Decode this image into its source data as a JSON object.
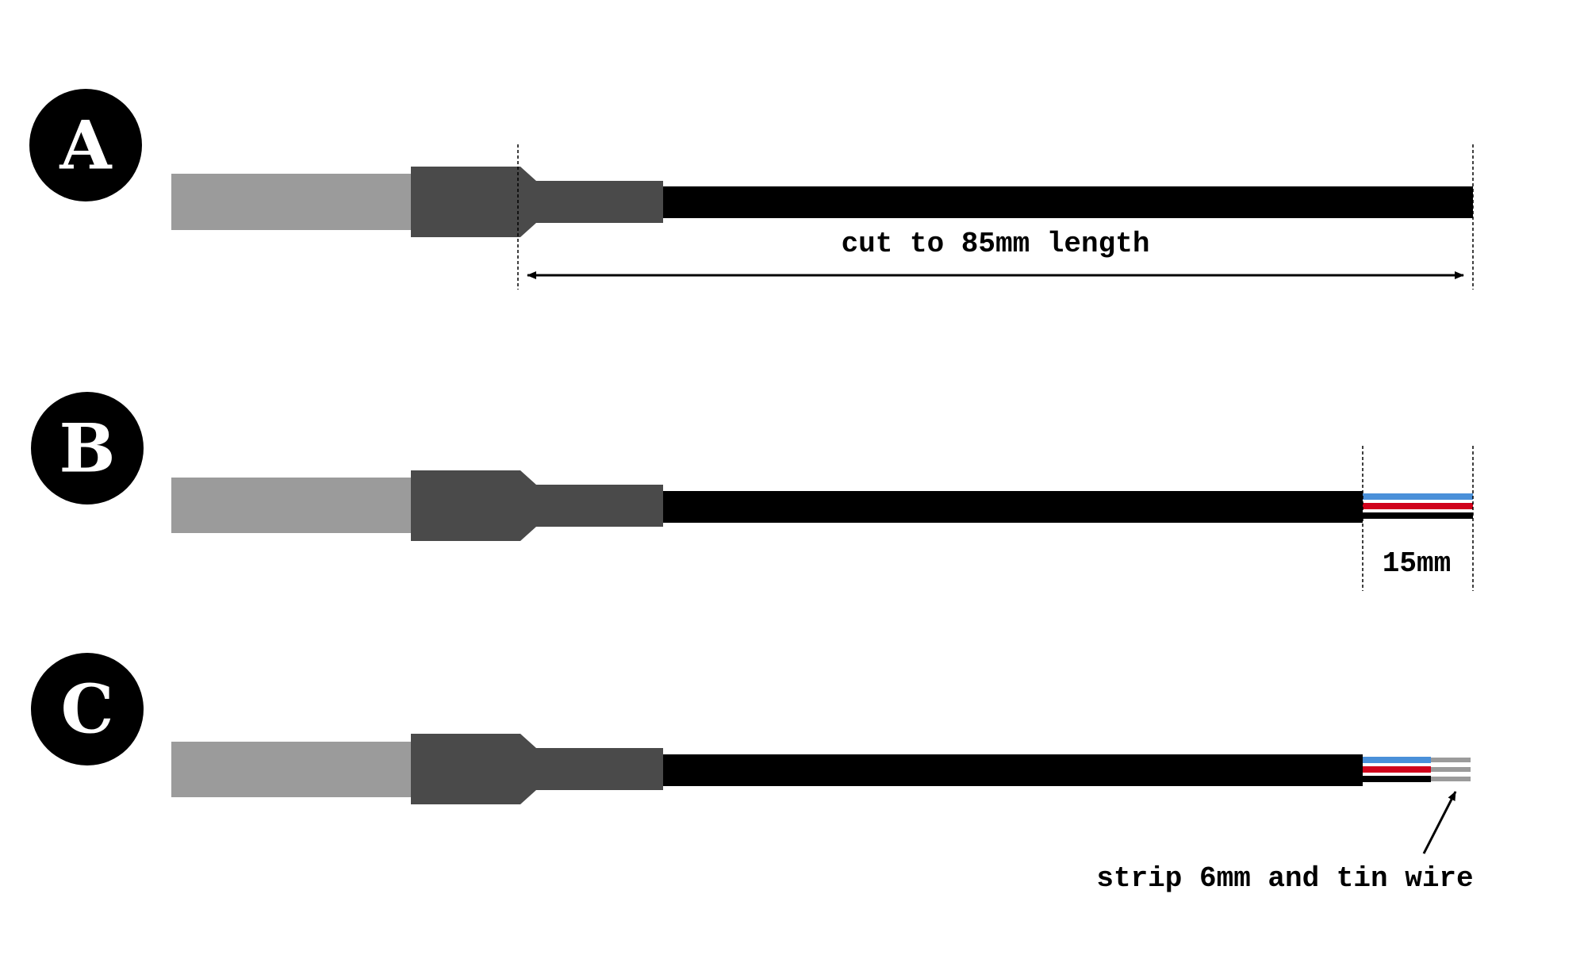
{
  "steps": [
    {
      "letter": "A"
    },
    {
      "letter": "B"
    },
    {
      "letter": "C"
    }
  ],
  "annotations": {
    "cut_length": "cut to 85mm length",
    "strip_outer": "15mm",
    "strip_tin": "strip 6mm and tin wire"
  },
  "colors": {
    "probe_body": "#9b9b9b",
    "ferrule": "#4a4a4a",
    "cable_jacket": "#000000",
    "wire_blue": "#4a90d9",
    "wire_red": "#d0021b",
    "wire_black": "#000000",
    "tinned_wire": "#9b9b9b",
    "badge": "#000000",
    "badge_text": "#ffffff"
  }
}
